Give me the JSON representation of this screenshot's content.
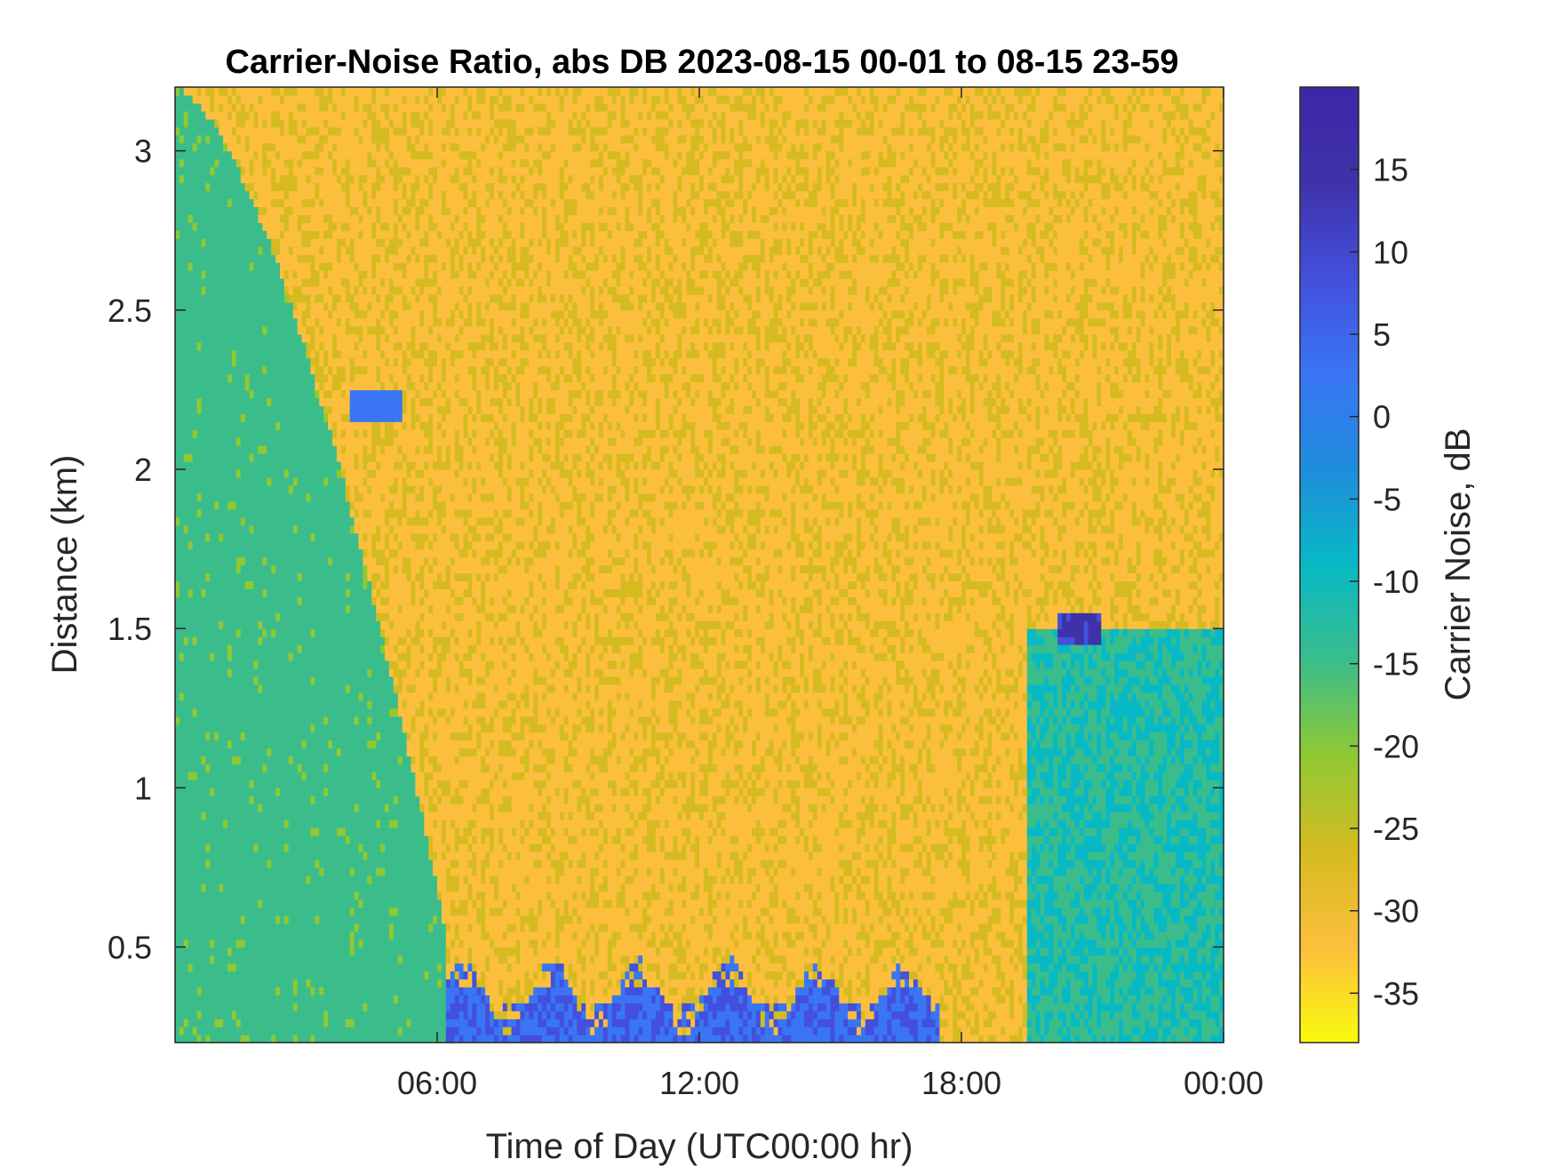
{
  "chart_data": {
    "type": "heatmap",
    "title": "Carrier-Noise Ratio, abs DB 2023-08-15 00-01 to 08-15 23-59",
    "xlabel": "Time of Day (UTC00:00 hr)",
    "ylabel": "Distance (km)",
    "xlim": [
      0,
      24
    ],
    "ylim": [
      0.2,
      3.2
    ],
    "x_ticks": [
      {
        "value": 6,
        "label": "06:00"
      },
      {
        "value": 12,
        "label": "12:00"
      },
      {
        "value": 18,
        "label": "18:00"
      },
      {
        "value": 24,
        "label": "00:00"
      }
    ],
    "y_ticks": [
      {
        "value": 0.5,
        "label": "0.5"
      },
      {
        "value": 1.0,
        "label": "1"
      },
      {
        "value": 1.5,
        "label": "1.5"
      },
      {
        "value": 2.0,
        "label": "2"
      },
      {
        "value": 2.5,
        "label": "2.5"
      },
      {
        "value": 3.0,
        "label": "3"
      }
    ],
    "colorbar": {
      "label": "Carrier Noise, dB",
      "colormap": "parula-reversed",
      "clim": [
        -38,
        20
      ],
      "ticks": [
        {
          "value": 15,
          "label": "15"
        },
        {
          "value": 10,
          "label": "10"
        },
        {
          "value": 5,
          "label": "5"
        },
        {
          "value": 0,
          "label": "0"
        },
        {
          "value": -5,
          "label": "-5"
        },
        {
          "value": -10,
          "label": "-10"
        },
        {
          "value": -15,
          "label": "-15"
        },
        {
          "value": -20,
          "label": "-20"
        },
        {
          "value": -25,
          "label": "-25"
        },
        {
          "value": -30,
          "label": "-30"
        },
        {
          "value": -35,
          "label": "-35"
        }
      ],
      "colors": [
        "#f9fb0e",
        "#fcbf3d",
        "#d5bb21",
        "#90c932",
        "#3bbd8b",
        "#07b9c5",
        "#1f8ddc",
        "#3a75f4",
        "#4350dc",
        "#3f32a9",
        "#3e26a8"
      ]
    },
    "background_value_db": -30,
    "features": [
      {
        "kind": "night_boundary_layer",
        "start_hr": 0,
        "end_hr": 6.2,
        "top_km_start": 3.2,
        "top_km_end": 0.55,
        "value_db": -15
      },
      {
        "kind": "residual_layer_top",
        "start_hr": 4,
        "end_hr": 8,
        "height_km": 2.2,
        "value_db": 3
      },
      {
        "kind": "surface_layer",
        "start_hr": 6.2,
        "end_hr": 17.5,
        "height_km": 0.35,
        "value_db": 5
      },
      {
        "kind": "evening_boundary_layer",
        "start_hr": 19.5,
        "end_hr": 24,
        "top_km": 1.5,
        "value_db": -12
      },
      {
        "kind": "cloud_return",
        "start_hr": 20.2,
        "end_hr": 21.2,
        "height_km": 1.5,
        "value_db": 12
      }
    ]
  }
}
